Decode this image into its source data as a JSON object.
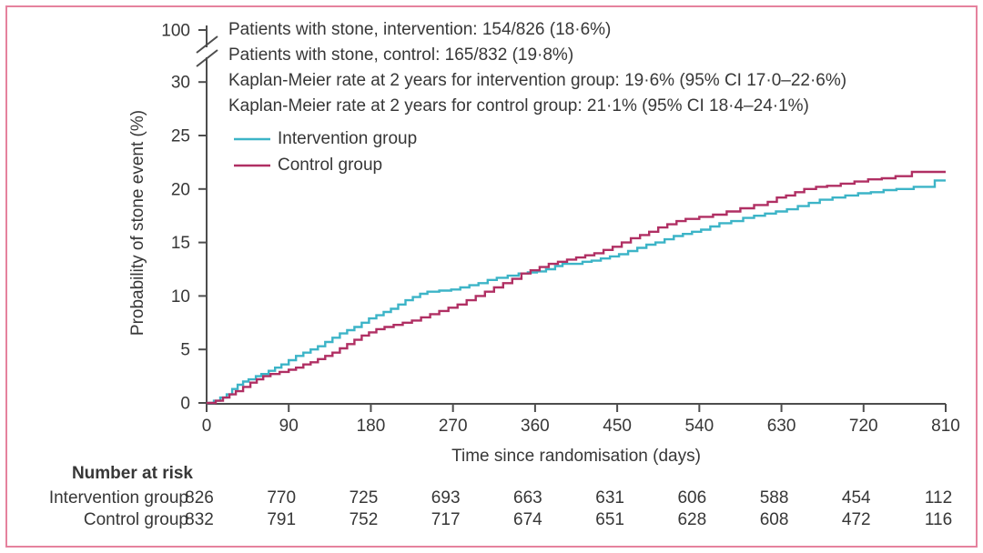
{
  "frame": {
    "border_color": "#e5829e"
  },
  "chart_data": {
    "type": "line",
    "subtype": "kaplan-meier-step",
    "xlabel": "Time since randomisation (days)",
    "ylabel": "Probability of stone event (%)",
    "xlim": [
      0,
      810
    ],
    "x_ticks": [
      0,
      90,
      180,
      270,
      360,
      450,
      540,
      630,
      720,
      810
    ],
    "y_ticks": [
      0,
      5,
      10,
      15,
      20,
      25,
      30
    ],
    "y_axis_break": {
      "top_label": "100",
      "break_after": 30
    },
    "grid": false,
    "legend_position": "top-left-inside",
    "annotations": [
      "Patients with stone, intervention: 154/826 (18·6%)",
      "Patients with stone, control: 165/832 (19·8%)",
      "Kaplan-Meier rate at 2 years for intervention group: 19·6% (95% CI 17·0–22·6%)",
      "Kaplan-Meier rate at 2 years for control group: 21·1% (95% CI 18·4–24·1%)"
    ],
    "series": [
      {
        "name": "Intervention group",
        "color": "#3cb4c7",
        "points": [
          [
            0,
            0
          ],
          [
            8,
            0.2
          ],
          [
            15,
            0.5
          ],
          [
            22,
            0.8
          ],
          [
            28,
            1.3
          ],
          [
            34,
            1.7
          ],
          [
            40,
            2.0
          ],
          [
            46,
            2.2
          ],
          [
            54,
            2.5
          ],
          [
            60,
            2.7
          ],
          [
            68,
            3.0
          ],
          [
            75,
            3.3
          ],
          [
            82,
            3.6
          ],
          [
            90,
            4.0
          ],
          [
            98,
            4.4
          ],
          [
            106,
            4.7
          ],
          [
            114,
            5.0
          ],
          [
            122,
            5.3
          ],
          [
            130,
            5.7
          ],
          [
            138,
            6.1
          ],
          [
            146,
            6.5
          ],
          [
            154,
            6.8
          ],
          [
            162,
            7.1
          ],
          [
            170,
            7.5
          ],
          [
            178,
            7.9
          ],
          [
            186,
            8.2
          ],
          [
            194,
            8.5
          ],
          [
            202,
            8.8
          ],
          [
            210,
            9.2
          ],
          [
            218,
            9.6
          ],
          [
            226,
            9.9
          ],
          [
            234,
            10.2
          ],
          [
            242,
            10.4
          ],
          [
            255,
            10.5
          ],
          [
            268,
            10.6
          ],
          [
            278,
            10.8
          ],
          [
            288,
            11.0
          ],
          [
            298,
            11.2
          ],
          [
            308,
            11.5
          ],
          [
            318,
            11.7
          ],
          [
            330,
            11.9
          ],
          [
            342,
            12.1
          ],
          [
            352,
            12.2
          ],
          [
            362,
            12.3
          ],
          [
            372,
            12.5
          ],
          [
            382,
            12.8
          ],
          [
            390,
            13.0
          ],
          [
            402,
            13.0
          ],
          [
            412,
            13.2
          ],
          [
            422,
            13.3
          ],
          [
            432,
            13.5
          ],
          [
            442,
            13.7
          ],
          [
            452,
            13.9
          ],
          [
            462,
            14.2
          ],
          [
            472,
            14.5
          ],
          [
            482,
            14.8
          ],
          [
            492,
            15.0
          ],
          [
            502,
            15.3
          ],
          [
            512,
            15.6
          ],
          [
            522,
            15.8
          ],
          [
            532,
            16.0
          ],
          [
            542,
            16.2
          ],
          [
            552,
            16.5
          ],
          [
            562,
            16.8
          ],
          [
            575,
            17.0
          ],
          [
            588,
            17.3
          ],
          [
            600,
            17.5
          ],
          [
            612,
            17.7
          ],
          [
            624,
            17.9
          ],
          [
            636,
            18.1
          ],
          [
            648,
            18.4
          ],
          [
            660,
            18.7
          ],
          [
            672,
            19.0
          ],
          [
            686,
            19.2
          ],
          [
            700,
            19.4
          ],
          [
            714,
            19.6
          ],
          [
            728,
            19.7
          ],
          [
            742,
            19.9
          ],
          [
            756,
            20.0
          ],
          [
            775,
            20.2
          ],
          [
            798,
            20.8
          ],
          [
            810,
            20.8
          ]
        ]
      },
      {
        "name": "Control group",
        "color": "#b02f63",
        "points": [
          [
            0,
            0
          ],
          [
            10,
            0.2
          ],
          [
            18,
            0.5
          ],
          [
            25,
            0.8
          ],
          [
            32,
            1.1
          ],
          [
            40,
            1.5
          ],
          [
            48,
            1.9
          ],
          [
            55,
            2.2
          ],
          [
            62,
            2.5
          ],
          [
            70,
            2.7
          ],
          [
            80,
            2.9
          ],
          [
            90,
            3.1
          ],
          [
            98,
            3.3
          ],
          [
            106,
            3.6
          ],
          [
            114,
            3.8
          ],
          [
            122,
            4.1
          ],
          [
            130,
            4.4
          ],
          [
            138,
            4.7
          ],
          [
            146,
            5.1
          ],
          [
            154,
            5.5
          ],
          [
            162,
            5.9
          ],
          [
            170,
            6.3
          ],
          [
            178,
            6.6
          ],
          [
            186,
            6.9
          ],
          [
            195,
            7.1
          ],
          [
            205,
            7.3
          ],
          [
            215,
            7.5
          ],
          [
            225,
            7.7
          ],
          [
            235,
            8.0
          ],
          [
            245,
            8.3
          ],
          [
            255,
            8.6
          ],
          [
            265,
            8.9
          ],
          [
            275,
            9.2
          ],
          [
            285,
            9.6
          ],
          [
            295,
            10.0
          ],
          [
            305,
            10.4
          ],
          [
            315,
            10.8
          ],
          [
            325,
            11.2
          ],
          [
            335,
            11.6
          ],
          [
            345,
            12.1
          ],
          [
            355,
            12.4
          ],
          [
            365,
            12.7
          ],
          [
            375,
            13.0
          ],
          [
            385,
            13.2
          ],
          [
            395,
            13.4
          ],
          [
            405,
            13.6
          ],
          [
            415,
            13.8
          ],
          [
            425,
            14.0
          ],
          [
            435,
            14.3
          ],
          [
            445,
            14.6
          ],
          [
            455,
            15.0
          ],
          [
            465,
            15.4
          ],
          [
            475,
            15.7
          ],
          [
            485,
            16.0
          ],
          [
            495,
            16.4
          ],
          [
            505,
            16.7
          ],
          [
            515,
            17.0
          ],
          [
            525,
            17.2
          ],
          [
            540,
            17.4
          ],
          [
            555,
            17.6
          ],
          [
            570,
            17.9
          ],
          [
            585,
            18.2
          ],
          [
            600,
            18.5
          ],
          [
            615,
            18.8
          ],
          [
            625,
            19.2
          ],
          [
            635,
            19.4
          ],
          [
            645,
            19.7
          ],
          [
            655,
            20.0
          ],
          [
            668,
            20.2
          ],
          [
            680,
            20.3
          ],
          [
            695,
            20.5
          ],
          [
            710,
            20.7
          ],
          [
            725,
            20.9
          ],
          [
            740,
            21.0
          ],
          [
            755,
            21.2
          ],
          [
            773,
            21.6
          ],
          [
            810,
            21.6
          ]
        ]
      }
    ]
  },
  "number_at_risk": {
    "header": "Number at risk",
    "rows": [
      {
        "label": "Intervention group",
        "values": [
          826,
          770,
          725,
          693,
          663,
          631,
          606,
          588,
          454,
          112
        ]
      },
      {
        "label": "Control group",
        "values": [
          832,
          791,
          752,
          717,
          674,
          651,
          628,
          608,
          472,
          116
        ]
      }
    ]
  }
}
